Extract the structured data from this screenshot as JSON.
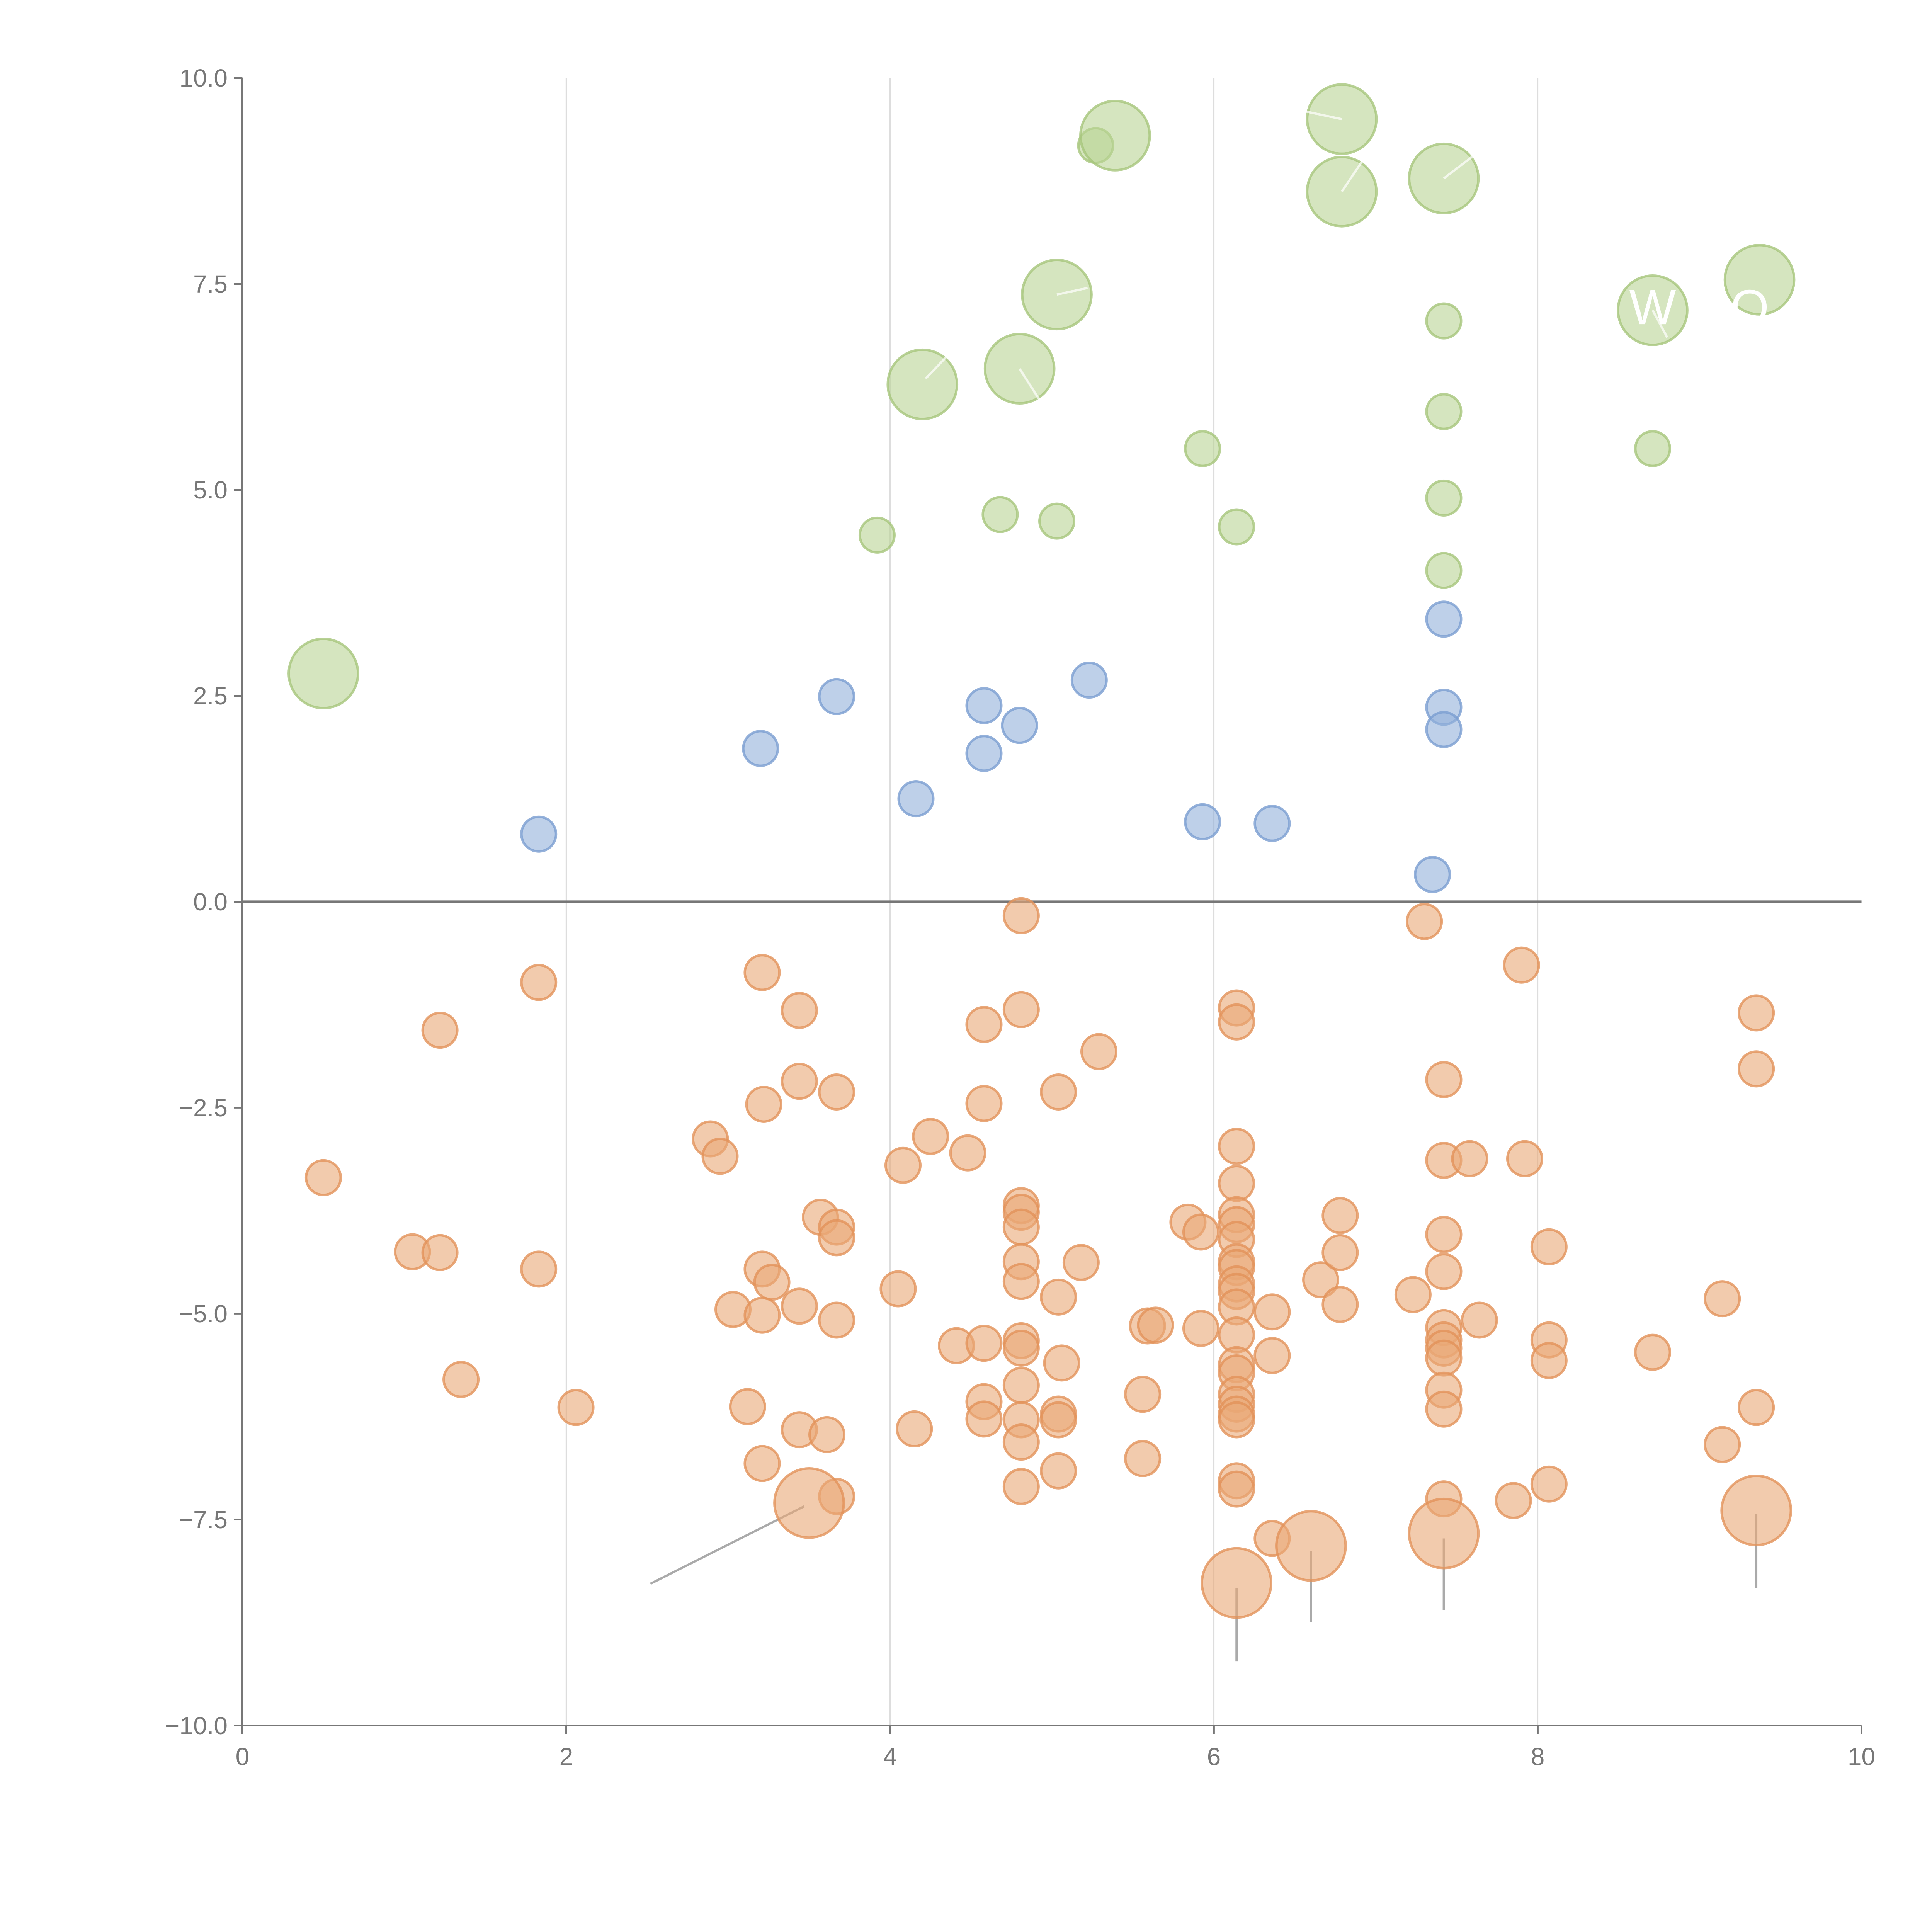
{
  "chart_data": {
    "type": "scatter",
    "title": "",
    "xlabel": "",
    "ylabel": "",
    "xlim": [
      0,
      10
    ],
    "ylim": [
      -10,
      10
    ],
    "grid": "vertical",
    "x_ticks": [
      "0",
      "2",
      "4",
      "6",
      "8",
      "10"
    ],
    "x_tick_values": [
      0,
      2,
      4,
      6,
      8,
      10
    ],
    "y_ticks": [
      "10.0",
      "7.5",
      "5.0",
      "2.5",
      "0.0",
      "−2.5",
      "−5.0",
      "−7.5",
      "−10.0"
    ],
    "y_tick_values": [
      10,
      7.5,
      5,
      2.5,
      0,
      -2.5,
      -5,
      -7.5,
      -10
    ],
    "point_format": "[x, y, size]",
    "series": [
      {
        "name": "green",
        "color": "#b9d494",
        "stroke": "#a6c67c",
        "points": [
          [
            7.42,
            7.05,
            1
          ],
          [
            7.42,
            5.95,
            1
          ],
          [
            7.42,
            4.9,
            1
          ],
          [
            7.42,
            4.02,
            1
          ],
          [
            8.71,
            5.5,
            1
          ],
          [
            5.93,
            5.5,
            1
          ],
          [
            6.14,
            4.55,
            1
          ],
          [
            5.03,
            4.62,
            1
          ],
          [
            4.68,
            4.7,
            1
          ],
          [
            3.92,
            4.45,
            1
          ],
          [
            5.27,
            9.18,
            1
          ],
          [
            0.5,
            2.77,
            4
          ],
          [
            4.2,
            6.28,
            4
          ],
          [
            4.8,
            6.47,
            4
          ],
          [
            5.03,
            7.37,
            4
          ],
          [
            5.39,
            9.3,
            4
          ],
          [
            6.79,
            9.5,
            4
          ],
          [
            6.79,
            8.62,
            4
          ],
          [
            7.42,
            8.78,
            4
          ],
          [
            8.71,
            7.18,
            4
          ],
          [
            9.37,
            7.55,
            4
          ]
        ]
      },
      {
        "name": "blue",
        "color": "#93b0db",
        "stroke": "#7b9dd1",
        "points": [
          [
            1.83,
            0.82,
            1
          ],
          [
            3.2,
            1.86,
            1
          ],
          [
            3.67,
            2.49,
            1
          ],
          [
            4.16,
            1.25,
            1
          ],
          [
            4.58,
            2.38,
            1
          ],
          [
            4.58,
            1.8,
            1
          ],
          [
            4.8,
            2.14,
            1
          ],
          [
            5.23,
            2.69,
            1
          ],
          [
            5.93,
            0.97,
            1
          ],
          [
            6.36,
            0.95,
            1
          ],
          [
            7.35,
            0.33,
            1
          ],
          [
            7.42,
            2.36,
            1
          ],
          [
            7.42,
            2.09,
            1
          ],
          [
            7.42,
            3.43,
            1
          ]
        ]
      },
      {
        "name": "orange",
        "color": "#eaa877",
        "stroke": "#e2925a",
        "points": [
          [
            0.5,
            -3.35,
            1
          ],
          [
            1.22,
            -1.56,
            1
          ],
          [
            1.05,
            -4.25,
            1
          ],
          [
            1.22,
            -4.26,
            1
          ],
          [
            1.35,
            -5.8,
            1
          ],
          [
            1.83,
            -0.98,
            1
          ],
          [
            1.83,
            -4.46,
            1
          ],
          [
            2.06,
            -6.14,
            1
          ],
          [
            2.89,
            -2.88,
            1
          ],
          [
            2.95,
            -3.09,
            1
          ],
          [
            3.03,
            -4.95,
            1
          ],
          [
            3.12,
            -6.13,
            1
          ],
          [
            3.21,
            -0.86,
            1
          ],
          [
            3.22,
            -2.46,
            1
          ],
          [
            3.21,
            -4.46,
            1
          ],
          [
            3.27,
            -4.62,
            1
          ],
          [
            3.21,
            -5.02,
            1
          ],
          [
            3.21,
            -6.82,
            1
          ],
          [
            3.44,
            -1.32,
            1
          ],
          [
            3.44,
            -2.18,
            1
          ],
          [
            3.44,
            -4.91,
            1
          ],
          [
            3.44,
            -6.41,
            1
          ],
          [
            3.57,
            -3.83,
            1
          ],
          [
            3.67,
            -2.31,
            1
          ],
          [
            3.67,
            -3.95,
            1
          ],
          [
            3.67,
            -4.08,
            1
          ],
          [
            3.67,
            -5.08,
            1
          ],
          [
            3.61,
            -6.47,
            1
          ],
          [
            3.67,
            -7.22,
            1
          ],
          [
            4.08,
            -3.2,
            1
          ],
          [
            4.25,
            -2.85,
            1
          ],
          [
            4.05,
            -4.7,
            1
          ],
          [
            4.15,
            -6.4,
            1
          ],
          [
            4.48,
            -3.05,
            1
          ],
          [
            4.41,
            -5.39,
            1
          ],
          [
            4.58,
            -1.49,
            1
          ],
          [
            4.58,
            -2.45,
            1
          ],
          [
            4.58,
            -5.36,
            1
          ],
          [
            4.58,
            -6.07,
            1
          ],
          [
            4.58,
            -6.28,
            1
          ],
          [
            4.81,
            -0.17,
            1
          ],
          [
            4.81,
            -1.31,
            1
          ],
          [
            4.81,
            -3.69,
            1
          ],
          [
            4.81,
            -3.77,
            1
          ],
          [
            4.81,
            -3.95,
            1
          ],
          [
            4.81,
            -4.37,
            1
          ],
          [
            4.81,
            -4.61,
            1
          ],
          [
            4.81,
            -5.33,
            1
          ],
          [
            4.81,
            -5.42,
            1
          ],
          [
            4.81,
            -5.87,
            1
          ],
          [
            4.81,
            -6.29,
            1
          ],
          [
            4.81,
            -6.56,
            1
          ],
          [
            4.81,
            -7.1,
            1
          ],
          [
            5.04,
            -2.31,
            1
          ],
          [
            5.04,
            -4.8,
            1
          ],
          [
            5.06,
            -5.6,
            1
          ],
          [
            5.04,
            -6.22,
            1
          ],
          [
            5.04,
            -6.29,
            1
          ],
          [
            5.04,
            -6.91,
            1
          ],
          [
            5.18,
            -4.38,
            1
          ],
          [
            5.29,
            -1.82,
            1
          ],
          [
            5.56,
            -5.98,
            1
          ],
          [
            5.56,
            -6.76,
            1
          ],
          [
            5.59,
            -5.15,
            1
          ],
          [
            5.64,
            -5.14,
            1
          ],
          [
            5.84,
            -3.89,
            1
          ],
          [
            5.92,
            -4.01,
            1
          ],
          [
            5.92,
            -5.18,
            1
          ],
          [
            6.14,
            -1.29,
            1
          ],
          [
            6.14,
            -1.46,
            1
          ],
          [
            6.14,
            -2.97,
            1
          ],
          [
            6.14,
            -3.42,
            1
          ],
          [
            6.14,
            -3.8,
            1
          ],
          [
            6.14,
            -3.92,
            1
          ],
          [
            6.14,
            -4.1,
            1
          ],
          [
            6.14,
            -4.37,
            1
          ],
          [
            6.14,
            -4.44,
            1
          ],
          [
            6.14,
            -4.64,
            1
          ],
          [
            6.14,
            -4.73,
            1
          ],
          [
            6.14,
            -4.92,
            1
          ],
          [
            6.14,
            -5.26,
            1
          ],
          [
            6.14,
            -5.62,
            1
          ],
          [
            6.14,
            -5.72,
            1
          ],
          [
            6.14,
            -5.98,
            1
          ],
          [
            6.14,
            -6.1,
            1
          ],
          [
            6.14,
            -6.22,
            1
          ],
          [
            6.14,
            -6.29,
            1
          ],
          [
            6.14,
            -7.03,
            1
          ],
          [
            6.14,
            -7.13,
            1
          ],
          [
            6.36,
            -4.98,
            1
          ],
          [
            6.36,
            -5.51,
            1
          ],
          [
            6.36,
            -7.73,
            1
          ],
          [
            6.66,
            -4.59,
            1
          ],
          [
            6.78,
            -3.81,
            1
          ],
          [
            6.78,
            -4.26,
            1
          ],
          [
            6.78,
            -4.89,
            1
          ],
          [
            7.23,
            -4.77,
            1
          ],
          [
            7.3,
            -0.24,
            1
          ],
          [
            7.42,
            -2.16,
            1
          ],
          [
            7.42,
            -3.14,
            1
          ],
          [
            7.42,
            -4.04,
            1
          ],
          [
            7.42,
            -4.49,
            1
          ],
          [
            7.42,
            -5.17,
            1
          ],
          [
            7.42,
            -5.32,
            1
          ],
          [
            7.42,
            -5.42,
            1
          ],
          [
            7.42,
            -5.54,
            1
          ],
          [
            7.42,
            -5.93,
            1
          ],
          [
            7.42,
            -6.16,
            1
          ],
          [
            7.42,
            -7.25,
            1
          ],
          [
            7.58,
            -3.12,
            1
          ],
          [
            7.64,
            -5.08,
            1
          ],
          [
            7.9,
            -0.77,
            1
          ],
          [
            7.92,
            -3.12,
            1
          ],
          [
            7.85,
            -7.27,
            1
          ],
          [
            8.07,
            -4.19,
            1
          ],
          [
            8.07,
            -5.32,
            1
          ],
          [
            8.07,
            -5.57,
            1
          ],
          [
            8.07,
            -7.07,
            1
          ],
          [
            8.71,
            -5.47,
            1
          ],
          [
            9.14,
            -4.82,
            1
          ],
          [
            9.14,
            -6.59,
            1
          ],
          [
            9.35,
            -1.35,
            1
          ],
          [
            9.35,
            -2.03,
            1
          ],
          [
            9.35,
            -6.14,
            1
          ],
          [
            3.5,
            -7.3,
            4
          ],
          [
            6.14,
            -8.27,
            4
          ],
          [
            6.6,
            -7.82,
            4
          ],
          [
            7.42,
            -7.67,
            4
          ],
          [
            9.35,
            -7.39,
            4
          ]
        ]
      }
    ],
    "annotation_lines": [
      {
        "color": "#aaaaaa",
        "from": [
          3.47,
          -7.34
        ],
        "to": [
          2.52,
          -8.28
        ]
      },
      {
        "color": "#aaaaaa",
        "from": [
          6.14,
          -8.33
        ],
        "to": [
          6.14,
          -9.22
        ]
      },
      {
        "color": "#aaaaaa",
        "from": [
          6.6,
          -7.88
        ],
        "to": [
          6.6,
          -8.75
        ]
      },
      {
        "color": "#aaaaaa",
        "from": [
          7.42,
          -7.73
        ],
        "to": [
          7.42,
          -8.6
        ]
      },
      {
        "color": "#aaaaaa",
        "from": [
          9.35,
          -7.43
        ],
        "to": [
          9.35,
          -8.33
        ]
      },
      {
        "color": "#ffffff",
        "from": [
          4.22,
          6.35
        ],
        "to": [
          4.38,
          6.68
        ]
      },
      {
        "color": "#ffffff",
        "from": [
          4.8,
          6.47
        ],
        "to": [
          4.92,
          6.1
        ]
      },
      {
        "color": "#ffffff",
        "from": [
          5.03,
          7.37
        ],
        "to": [
          5.22,
          7.45
        ]
      },
      {
        "color": "#ffffff",
        "from": [
          6.79,
          9.5
        ],
        "to": [
          6.55,
          9.6
        ]
      },
      {
        "color": "#ffffff",
        "from": [
          6.79,
          8.62
        ],
        "to": [
          6.92,
          9.0
        ]
      },
      {
        "color": "#ffffff",
        "from": [
          7.42,
          8.78
        ],
        "to": [
          7.6,
          9.05
        ]
      },
      {
        "color": "#ffffff",
        "from": [
          8.71,
          7.18
        ],
        "to": [
          8.8,
          6.85
        ]
      }
    ],
    "labels": [
      {
        "text": "W",
        "x": 8.71,
        "y": 7.22
      },
      {
        "text": "O",
        "x": 9.31,
        "y": 7.22
      }
    ]
  }
}
